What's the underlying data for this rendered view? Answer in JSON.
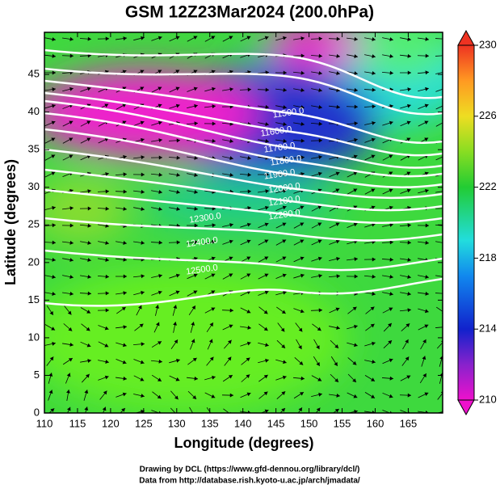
{
  "title": "GSM 12Z23Mar2024 (200.0hPa)",
  "x_axis": {
    "label": "Longitude (degrees)",
    "lim": [
      110,
      170.2
    ],
    "ticks": [
      110,
      115,
      120,
      125,
      130,
      135,
      140,
      145,
      150,
      155,
      160,
      165
    ]
  },
  "y_axis": {
    "label": "Latitude  (degrees)",
    "lim": [
      0,
      50.6
    ],
    "ticks": [
      0,
      5,
      10,
      15,
      20,
      25,
      30,
      35,
      40,
      45
    ]
  },
  "colorbar": {
    "lim": [
      210,
      230
    ],
    "ticks": [
      210,
      214,
      218,
      222,
      226,
      230
    ]
  },
  "contour_labels": [
    "11500.0",
    "11600.0",
    "11700.0",
    "11800.0",
    "11900.0",
    "12000.0",
    "12100.0",
    "12200.0",
    "12300.0",
    "12400.0",
    "12500.0"
  ],
  "credits": [
    "Drawing by DCL (https://www.gfd-dennou.org/library/dcl/)",
    "Data from http://database.rish.kyoto-u.ac.jp/arch/jmadata/"
  ]
}
